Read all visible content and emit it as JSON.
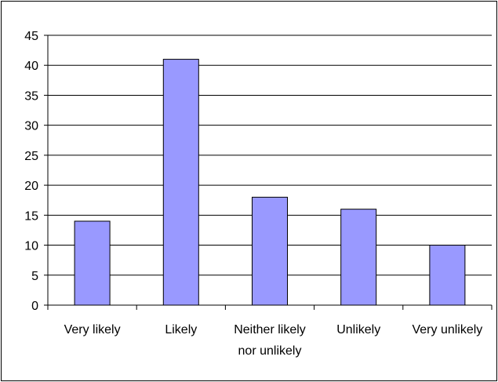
{
  "chart_data": {
    "type": "bar",
    "title": "",
    "xlabel": "",
    "ylabel": "",
    "categories": [
      [
        "Very likely"
      ],
      [
        "Likely"
      ],
      [
        "Neither likely",
        "nor unlikely"
      ],
      [
        "Unlikely"
      ],
      [
        "Very unlikely"
      ]
    ],
    "values": [
      14,
      41,
      18,
      16,
      10
    ],
    "ylim": [
      0,
      45
    ],
    "y_ticks": [
      0,
      5,
      10,
      15,
      20,
      25,
      30,
      35,
      40,
      45
    ],
    "grid": true,
    "legend": "none",
    "colors": {
      "bar_fill": "#9999ff",
      "bar_stroke": "#000000",
      "grid": "#000000",
      "axis": "#000000"
    }
  }
}
